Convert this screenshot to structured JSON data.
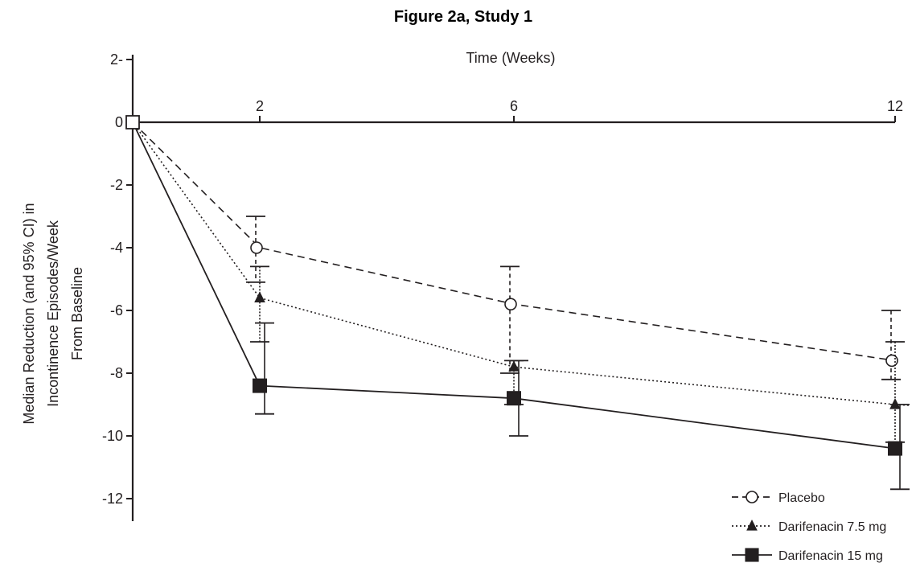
{
  "chart_data": {
    "type": "line",
    "title": "Figure 2a, Study 1",
    "xlabel": "Time (Weeks)",
    "ylabel_lines": [
      "Median Reduction (and 95% CI) in",
      "Incontinence Episodes/Week",
      "From Baseline"
    ],
    "x_ticks": [
      "2",
      "6",
      "12"
    ],
    "y_ticks": [
      "2-",
      "0",
      "-2",
      "-4",
      "-6",
      "-8",
      "-10",
      "-12"
    ],
    "ylim": [
      -12,
      2
    ],
    "x_axis_position": "top",
    "grid": false,
    "legend_position": "bottom-right",
    "series": [
      {
        "name": "Placebo",
        "marker": "open-circle",
        "line_style": "dashed",
        "x": [
          0,
          2,
          6,
          12
        ],
        "y": [
          0,
          -4.0,
          -5.8,
          -7.6
        ],
        "ci_low": [
          null,
          -5.1,
          -8.0,
          -8.2
        ],
        "ci_high": [
          null,
          -3.0,
          -4.6,
          -6.0
        ]
      },
      {
        "name": "Darifenacin 7.5 mg",
        "marker": "filled-triangle",
        "line_style": "dotted",
        "x": [
          0,
          2,
          6,
          12
        ],
        "y": [
          0,
          -5.6,
          -7.8,
          -9.0
        ],
        "ci_low": [
          null,
          -7.0,
          -9.0,
          -10.2
        ],
        "ci_high": [
          null,
          -4.6,
          -7.6,
          -7.0
        ]
      },
      {
        "name": "Darifenacin 15 mg",
        "marker": "filled-square",
        "line_style": "solid",
        "x": [
          0,
          2,
          6,
          12
        ],
        "y": [
          0,
          -8.4,
          -8.8,
          -10.4
        ],
        "ci_low": [
          null,
          -9.3,
          -10.0,
          -11.7
        ],
        "ci_high": [
          null,
          -6.4,
          -7.6,
          -9.0
        ]
      }
    ]
  }
}
